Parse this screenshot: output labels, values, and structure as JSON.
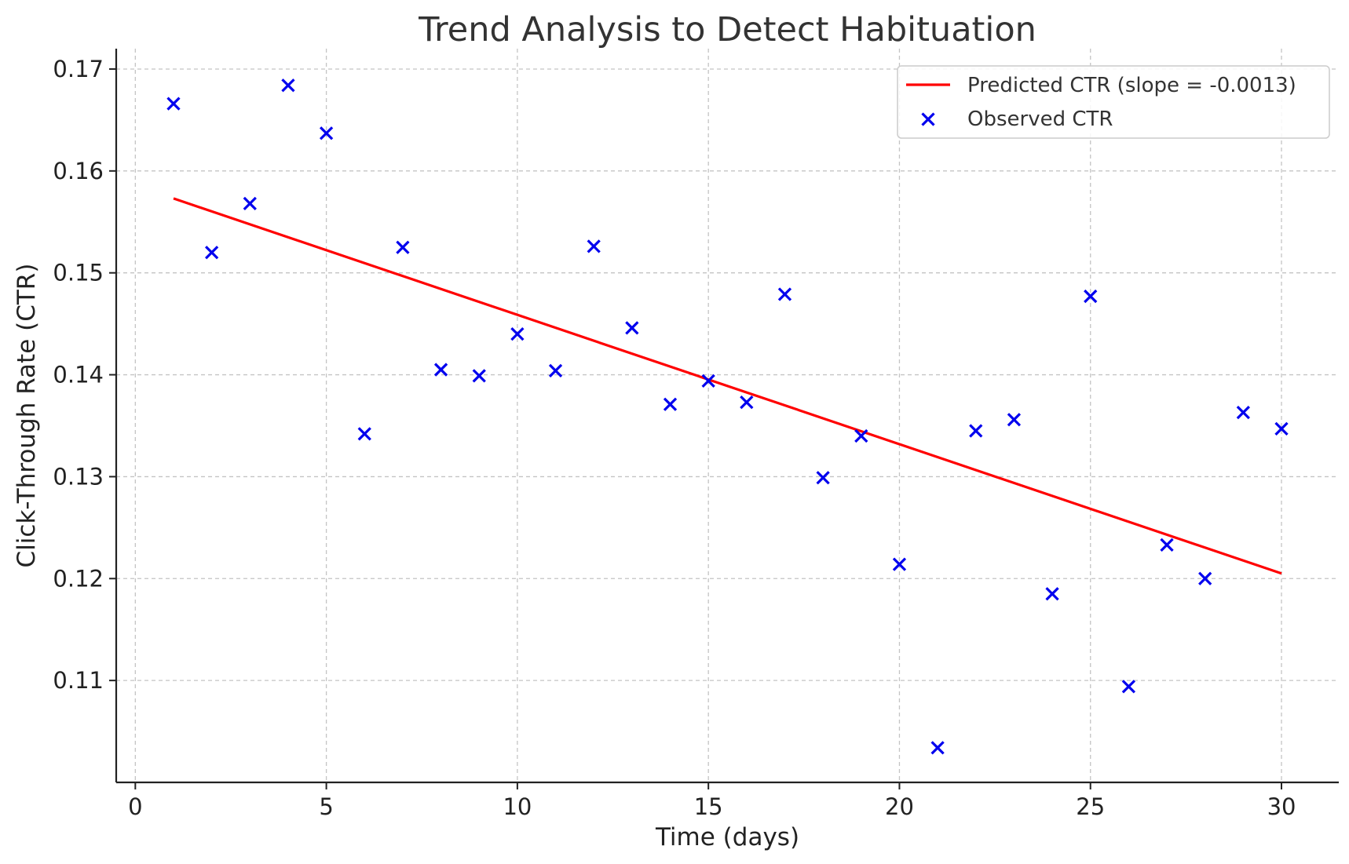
{
  "chart_data": {
    "type": "scatter",
    "title": "Trend Analysis to Detect Habituation",
    "xlabel": "Time (days)",
    "ylabel": "Click-Through Rate (CTR)",
    "xlim": [
      -0.5,
      31.5
    ],
    "ylim": [
      0.1,
      0.172
    ],
    "x_ticks": [
      0,
      5,
      10,
      15,
      20,
      25,
      30
    ],
    "y_ticks": [
      0.11,
      0.12,
      0.13,
      0.14,
      0.15,
      0.16,
      0.17
    ],
    "y_tick_labels": [
      "0.11",
      "0.12",
      "0.13",
      "0.14",
      "0.15",
      "0.16",
      "0.17"
    ],
    "grid": true,
    "legend_position": "top-right",
    "series": [
      {
        "name": "Predicted CTR (slope = -0.0013)",
        "kind": "line",
        "color": "#ff0000",
        "x": [
          1,
          30
        ],
        "y": [
          0.1573,
          0.1205
        ]
      },
      {
        "name": "Observed CTR",
        "kind": "scatter",
        "marker": "x",
        "color": "#0000ee",
        "x": [
          1,
          2,
          3,
          4,
          5,
          6,
          7,
          8,
          9,
          10,
          11,
          12,
          13,
          14,
          15,
          16,
          17,
          18,
          19,
          20,
          21,
          22,
          23,
          24,
          25,
          26,
          27,
          28,
          29,
          30
        ],
        "y": [
          0.1666,
          0.152,
          0.1568,
          0.1684,
          0.1637,
          0.1342,
          0.1525,
          0.1405,
          0.1399,
          0.144,
          0.1404,
          0.1526,
          0.1446,
          0.1371,
          0.1394,
          0.1373,
          0.1479,
          0.1299,
          0.134,
          0.1214,
          0.1034,
          0.1345,
          0.1356,
          0.1185,
          0.1477,
          0.1094,
          0.1233,
          0.12,
          0.1363,
          0.1347
        ]
      }
    ]
  }
}
